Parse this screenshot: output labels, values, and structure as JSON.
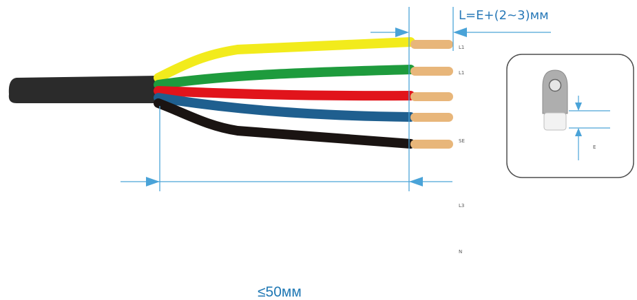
{
  "labels": {
    "top_formula": "L=E+(2~3)мм",
    "bottom_length": "≤50мм",
    "side_labels": [
      "L1",
      "L1",
      "SE",
      "L3",
      "N"
    ],
    "terminal_dimension": "E"
  },
  "colors": {
    "dimension_line": "#4aa3d8",
    "dimension_text": "#2a7ab8",
    "cable_jacket": "#2b2b2b",
    "wire_yellow": "#f2eb1c",
    "wire_green": "#1e9b3d",
    "wire_red": "#e1141b",
    "wire_blue": "#1f5f8f",
    "wire_black": "#1a1412",
    "copper": "#e8b67a"
  }
}
